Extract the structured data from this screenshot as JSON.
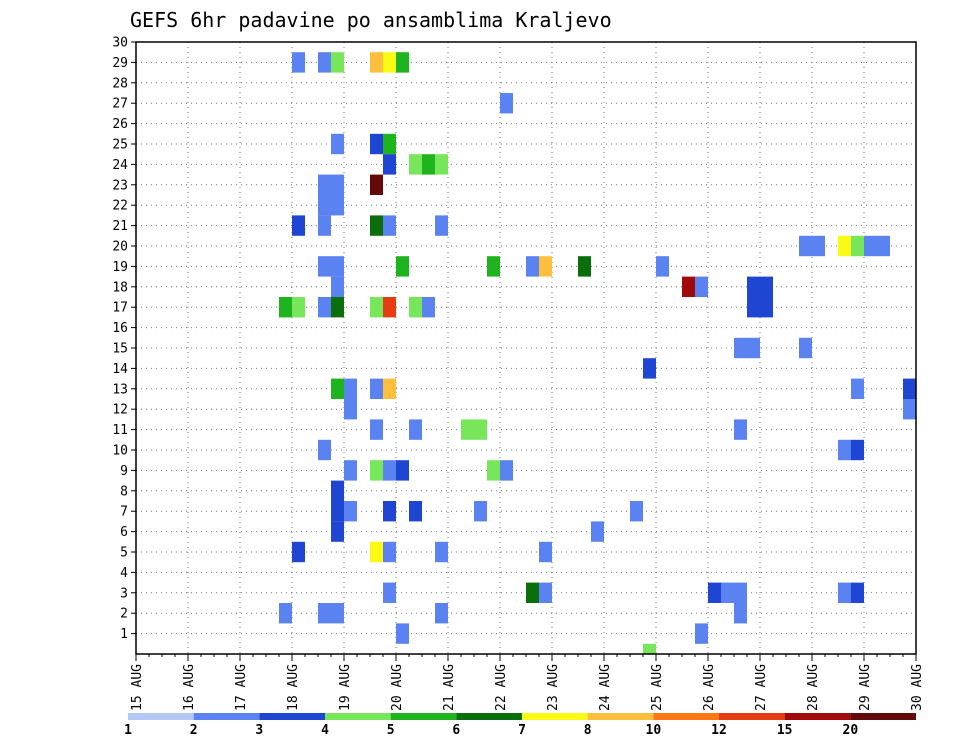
{
  "chart_data": {
    "type": "heatmap",
    "title": "GEFS 6hr padavine po ansamblima Kraljevo",
    "xlabel": "",
    "ylabel": "",
    "x_start": "15 AUG",
    "x_ticks": [
      "15 AUG",
      "16 AUG",
      "17 AUG",
      "18 AUG",
      "19 AUG",
      "20 AUG",
      "21 AUG",
      "22 AUG",
      "23 AUG",
      "24 AUG",
      "25 AUG",
      "26 AUG",
      "27 AUG",
      "28 AUG",
      "29 AUG",
      "30 AUG"
    ],
    "x_range_days": [
      0,
      15
    ],
    "y_ticks": [
      1,
      2,
      3,
      4,
      5,
      6,
      7,
      8,
      9,
      10,
      11,
      12,
      13,
      14,
      15,
      16,
      17,
      18,
      19,
      20,
      21,
      22,
      23,
      24,
      25,
      26,
      27,
      28,
      29,
      30
    ],
    "y_range": [
      0,
      30
    ],
    "step": "6hr",
    "grid": true,
    "colorbar": {
      "placement": "bottom",
      "labels": [
        "1",
        "2",
        "3",
        "4",
        "5",
        "6",
        "7",
        "8",
        "10",
        "12",
        "15",
        "20"
      ],
      "colors": [
        "#b4c8f5",
        "#5a82f0",
        "#1e46d2",
        "#78e65a",
        "#1eb41e",
        "#0a6e0a",
        "#fafa14",
        "#ffbe3c",
        "#ff7814",
        "#e63c14",
        "#a00a0a",
        "#640a0a"
      ]
    },
    "cells": [
      [
        29,
        12,
        1
      ],
      [
        29,
        14,
        1
      ],
      [
        29,
        15,
        3
      ],
      [
        29,
        18,
        7
      ],
      [
        29,
        19,
        6
      ],
      [
        29,
        20,
        4
      ],
      [
        27,
        28,
        1
      ],
      [
        25,
        15,
        1
      ],
      [
        25,
        18,
        2
      ],
      [
        25,
        19,
        4
      ],
      [
        24,
        19,
        2
      ],
      [
        24,
        21,
        3
      ],
      [
        24,
        22,
        4
      ],
      [
        24,
        23,
        3
      ],
      [
        23,
        14,
        1
      ],
      [
        23,
        15,
        1
      ],
      [
        23,
        18,
        11
      ],
      [
        22,
        14,
        1
      ],
      [
        22,
        15,
        1
      ],
      [
        21,
        12,
        2
      ],
      [
        21,
        14,
        1
      ],
      [
        21,
        18,
        5
      ],
      [
        21,
        19,
        1
      ],
      [
        21,
        23,
        1
      ],
      [
        20,
        51,
        1
      ],
      [
        20,
        52,
        1
      ],
      [
        20,
        54,
        6
      ],
      [
        20,
        55,
        3
      ],
      [
        20,
        56,
        1
      ],
      [
        20,
        57,
        1
      ],
      [
        19,
        14,
        1
      ],
      [
        19,
        15,
        1
      ],
      [
        19,
        20,
        4
      ],
      [
        19,
        27,
        4
      ],
      [
        19,
        30,
        1
      ],
      [
        19,
        31,
        7
      ],
      [
        19,
        34,
        5
      ],
      [
        19,
        40,
        1
      ],
      [
        18,
        15,
        1
      ],
      [
        18,
        42,
        10
      ],
      [
        18,
        43,
        1
      ],
      [
        18,
        47,
        2
      ],
      [
        18,
        48,
        2
      ],
      [
        17,
        11,
        4
      ],
      [
        17,
        12,
        3
      ],
      [
        17,
        14,
        1
      ],
      [
        17,
        15,
        5
      ],
      [
        17,
        18,
        3
      ],
      [
        17,
        19,
        9
      ],
      [
        17,
        21,
        3
      ],
      [
        17,
        22,
        1
      ],
      [
        17,
        47,
        2
      ],
      [
        17,
        48,
        2
      ],
      [
        15,
        46,
        1
      ],
      [
        15,
        47,
        1
      ],
      [
        15,
        51,
        1
      ],
      [
        14,
        39,
        2
      ],
      [
        13,
        15,
        4
      ],
      [
        13,
        16,
        1
      ],
      [
        13,
        18,
        1
      ],
      [
        13,
        19,
        7
      ],
      [
        13,
        55,
        1
      ],
      [
        13,
        59,
        2
      ],
      [
        12,
        16,
        1
      ],
      [
        12,
        59,
        1
      ],
      [
        11,
        18,
        1
      ],
      [
        11,
        21,
        1
      ],
      [
        11,
        25,
        3
      ],
      [
        11,
        26,
        3
      ],
      [
        11,
        46,
        1
      ],
      [
        10,
        14,
        1
      ],
      [
        10,
        54,
        1
      ],
      [
        10,
        55,
        2
      ],
      [
        9,
        16,
        1
      ],
      [
        9,
        18,
        3
      ],
      [
        9,
        19,
        1
      ],
      [
        9,
        20,
        2
      ],
      [
        9,
        27,
        3
      ],
      [
        9,
        28,
        1
      ],
      [
        8,
        15,
        2
      ],
      [
        7,
        15,
        2
      ],
      [
        7,
        16,
        1
      ],
      [
        7,
        19,
        2
      ],
      [
        7,
        21,
        2
      ],
      [
        7,
        26,
        1
      ],
      [
        7,
        38,
        1
      ],
      [
        6,
        15,
        2
      ],
      [
        6,
        35,
        1
      ],
      [
        5,
        12,
        2
      ],
      [
        5,
        18,
        6
      ],
      [
        5,
        19,
        1
      ],
      [
        5,
        23,
        1
      ],
      [
        5,
        31,
        1
      ],
      [
        3,
        19,
        1
      ],
      [
        3,
        30,
        5
      ],
      [
        3,
        31,
        1
      ],
      [
        3,
        44,
        2
      ],
      [
        3,
        45,
        1
      ],
      [
        3,
        46,
        1
      ],
      [
        3,
        54,
        1
      ],
      [
        3,
        55,
        2
      ],
      [
        2,
        11,
        1
      ],
      [
        2,
        14,
        1
      ],
      [
        2,
        15,
        1
      ],
      [
        2,
        23,
        1
      ],
      [
        2,
        46,
        1
      ],
      [
        1,
        20,
        1
      ],
      [
        1,
        43,
        1
      ],
      [
        0,
        39,
        3
      ]
    ]
  }
}
